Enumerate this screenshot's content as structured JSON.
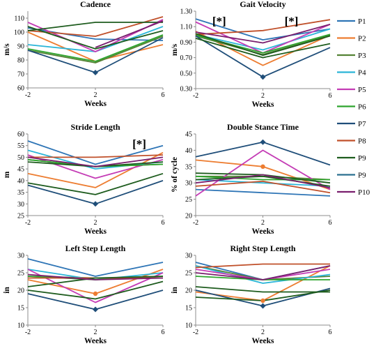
{
  "legend": {
    "entries": [
      {
        "label": "P1",
        "color": "#2e75b6"
      },
      {
        "label": "P2",
        "color": "#ed7d31"
      },
      {
        "label": "P3",
        "color": "#548235"
      },
      {
        "label": "P4",
        "color": "#2bb5d8"
      },
      {
        "label": "P5",
        "color": "#c43cb5"
      },
      {
        "label": "P6",
        "color": "#2ea52e"
      },
      {
        "label": "P7",
        "color": "#1f4e79"
      },
      {
        "label": "P8",
        "color": "#c0502a"
      },
      {
        "label": "P9",
        "color": "#1e5c1e"
      },
      {
        "label": "P9",
        "color": "#2a6f8f"
      },
      {
        "label": "P10",
        "color": "#7a1f6e"
      }
    ]
  },
  "chart_data": [
    {
      "type": "line",
      "title": "Cadence",
      "xlabel": "Weeks",
      "ylabel": "m/s",
      "x": [
        -2,
        2,
        6
      ],
      "ylim": [
        60,
        115
      ],
      "yticks": [
        60,
        70,
        80,
        90,
        100,
        110
      ],
      "ytick_labels": [
        "60",
        "70",
        "80",
        "90",
        "100",
        "110"
      ],
      "marker_series": "P7",
      "significance": [],
      "series": [
        {
          "name": "P1",
          "values": [
            103,
            95,
            94
          ]
        },
        {
          "name": "P2",
          "values": [
            100,
            79,
            91
          ]
        },
        {
          "name": "P3",
          "values": [
            87,
            78,
            97
          ]
        },
        {
          "name": "P4",
          "values": [
            91,
            86,
            104
          ]
        },
        {
          "name": "P5",
          "values": [
            107,
            86,
            109
          ]
        },
        {
          "name": "P6",
          "values": [
            88,
            79,
            98
          ]
        },
        {
          "name": "P7",
          "values": [
            87,
            71,
            96
          ]
        },
        {
          "name": "P8",
          "values": [
            101,
            97,
            111
          ]
        },
        {
          "name": "P9",
          "values": [
            101,
            107,
            107
          ]
        },
        {
          "name": "P9",
          "values": [
            104,
            88,
            101
          ]
        },
        {
          "name": "P10",
          "values": [
            null,
            89,
            108
          ]
        }
      ]
    },
    {
      "type": "line",
      "title": "Gait Velocity",
      "xlabel": "Weeks",
      "ylabel": "m/s",
      "x": [
        -2,
        2,
        6
      ],
      "ylim": [
        0.3,
        1.3
      ],
      "yticks": [
        0.3,
        0.5,
        0.7,
        0.9,
        1.1,
        1.3
      ],
      "ytick_labels": [
        "0.30",
        "0.50",
        "0.70",
        "0.90",
        "1.10",
        "1.30"
      ],
      "marker_series": "P7",
      "significance": [
        {
          "label": "[*]",
          "x": -0.6
        },
        {
          "label": "[*]",
          "x": 3.7
        }
      ],
      "series": [
        {
          "name": "P1",
          "values": [
            1.2,
            0.93,
            1.07
          ]
        },
        {
          "name": "P2",
          "values": [
            1.04,
            0.6,
            0.99
          ]
        },
        {
          "name": "P3",
          "values": [
            0.98,
            0.74,
            0.99
          ]
        },
        {
          "name": "P4",
          "values": [
            1.0,
            0.8,
            1.07
          ]
        },
        {
          "name": "P5",
          "values": [
            1.16,
            0.76,
            1.13
          ]
        },
        {
          "name": "P6",
          "values": [
            0.99,
            0.76,
            1.0
          ]
        },
        {
          "name": "P7",
          "values": [
            0.98,
            0.45,
            0.83
          ]
        },
        {
          "name": "P8",
          "values": [
            1.0,
            1.05,
            1.19
          ]
        },
        {
          "name": "P9",
          "values": [
            1.01,
            0.73,
            0.98
          ]
        },
        {
          "name": "P9",
          "values": [
            0.95,
            0.7,
            0.88
          ]
        },
        {
          "name": "P10",
          "values": [
            1.03,
            0.89,
            1.13
          ]
        }
      ]
    },
    {
      "type": "line",
      "title": "Stride Length",
      "xlabel": "Weeks",
      "ylabel": "m",
      "x": [
        -2,
        2,
        6
      ],
      "ylim": [
        25,
        60
      ],
      "yticks": [
        25,
        30,
        35,
        40,
        45,
        50,
        55,
        60
      ],
      "ytick_labels": [
        "25",
        "30",
        "35",
        "40",
        "45",
        "50",
        "55",
        "60"
      ],
      "marker_series": "P7",
      "significance": [
        {
          "label": "[*]",
          "x": 4.6
        }
      ],
      "series": [
        {
          "name": "P1",
          "values": [
            57,
            47,
            55
          ]
        },
        {
          "name": "P2",
          "values": [
            43,
            37,
            52
          ]
        },
        {
          "name": "P3",
          "values": [
            49,
            46,
            47
          ]
        },
        {
          "name": "P4",
          "values": [
            53,
            45,
            48
          ]
        },
        {
          "name": "P5",
          "values": [
            51,
            41,
            49
          ]
        },
        {
          "name": "P6",
          "values": [
            49,
            46,
            47
          ]
        },
        {
          "name": "P7",
          "values": [
            38,
            30,
            40
          ]
        },
        {
          "name": "P8",
          "values": [
            50,
            50,
            51
          ]
        },
        {
          "name": "P9",
          "values": [
            48,
            46,
            48
          ]
        },
        {
          "name": "P9",
          "values": [
            39,
            34,
            43
          ]
        },
        {
          "name": "P10",
          "values": [
            50,
            46,
            50
          ]
        }
      ]
    },
    {
      "type": "line",
      "title": "Double Stance Time",
      "xlabel": "Weeks",
      "ylabel": "% of cycle",
      "x": [
        -2,
        2,
        6
      ],
      "ylim": [
        20,
        45
      ],
      "yticks": [
        20,
        25,
        30,
        35,
        40,
        45
      ],
      "ytick_labels": [
        "20",
        "25",
        "30",
        "35",
        "40",
        "45"
      ],
      "marker_series": "P7",
      "secondary_markers": [
        {
          "series": "P2",
          "x": 2
        }
      ],
      "significance": [],
      "series": [
        {
          "name": "P1",
          "values": [
            28,
            27,
            26
          ]
        },
        {
          "name": "P2",
          "values": [
            37,
            35,
            28
          ]
        },
        {
          "name": "P3",
          "values": [
            32,
            32,
            31
          ]
        },
        {
          "name": "P4",
          "values": [
            31,
            30,
            29
          ]
        },
        {
          "name": "P5",
          "values": [
            26,
            40,
            28
          ]
        },
        {
          "name": "P6",
          "values": [
            32,
            31,
            31
          ]
        },
        {
          "name": "P7",
          "values": [
            38,
            42.5,
            35.5
          ]
        },
        {
          "name": "P8",
          "values": [
            29,
            30.5,
            27
          ]
        },
        {
          "name": "P9",
          "values": [
            33,
            32.5,
            30
          ]
        },
        {
          "name": "P9",
          "values": [
            31,
            32,
            29
          ]
        },
        {
          "name": "P10",
          "values": [
            30,
            32.5,
            28.5
          ]
        }
      ]
    },
    {
      "type": "line",
      "title": "Left Step Length",
      "xlabel": "Weeks",
      "ylabel": "in",
      "x": [
        -2,
        2,
        6
      ],
      "ylim": [
        10,
        30
      ],
      "yticks": [
        10,
        15,
        20,
        25,
        30
      ],
      "ytick_labels": [
        "10",
        "15",
        "20",
        "25",
        "30"
      ],
      "marker_series": "P7",
      "secondary_markers": [
        {
          "series": "P2",
          "x": 2
        }
      ],
      "significance": [],
      "series": [
        {
          "name": "P1",
          "values": [
            29,
            24,
            28
          ]
        },
        {
          "name": "P2",
          "values": [
            23,
            19,
            26
          ]
        },
        {
          "name": "P3",
          "values": [
            24,
            23.5,
            23.5
          ]
        },
        {
          "name": "P4",
          "values": [
            26,
            23,
            25
          ]
        },
        {
          "name": "P5",
          "values": [
            26,
            16.5,
            25
          ]
        },
        {
          "name": "P6",
          "values": [
            24,
            23,
            24
          ]
        },
        {
          "name": "P7",
          "values": [
            19,
            14.5,
            20
          ]
        },
        {
          "name": "P8",
          "values": [
            23.5,
            23.5,
            23.5
          ]
        },
        {
          "name": "P9",
          "values": [
            21,
            23.5,
            24
          ]
        },
        {
          "name": "P9",
          "values": [
            20,
            17.5,
            22.5
          ]
        },
        {
          "name": "P10",
          "values": [
            24.5,
            23,
            23.5
          ]
        }
      ]
    },
    {
      "type": "line",
      "title": "Right Step Length",
      "xlabel": "Weeks",
      "ylabel": "in",
      "x": [
        -2,
        2,
        6
      ],
      "ylim": [
        10,
        30
      ],
      "yticks": [
        10,
        15,
        20,
        25,
        30
      ],
      "ytick_labels": [
        "10",
        "15",
        "20",
        "25",
        "30"
      ],
      "marker_series": "P7",
      "secondary_markers": [
        {
          "series": "P2",
          "x": 2
        }
      ],
      "significance": [],
      "series": [
        {
          "name": "P1",
          "values": [
            28,
            23,
            27
          ]
        },
        {
          "name": "P2",
          "values": [
            19.5,
            17,
            27
          ]
        },
        {
          "name": "P3",
          "values": [
            27,
            23,
            24
          ]
        },
        {
          "name": "P4",
          "values": [
            27,
            22,
            24.5
          ]
        },
        {
          "name": "P5",
          "values": [
            26,
            23,
            26
          ]
        },
        {
          "name": "P6",
          "values": [
            24,
            23,
            23
          ]
        },
        {
          "name": "P7",
          "values": [
            20,
            15.5,
            20.5
          ]
        },
        {
          "name": "P8",
          "values": [
            26.5,
            27.5,
            27.5
          ]
        },
        {
          "name": "P9",
          "values": [
            21,
            19.5,
            19.5
          ]
        },
        {
          "name": "P9",
          "values": [
            18,
            17,
            20
          ]
        },
        {
          "name": "P10",
          "values": [
            25,
            23,
            27
          ]
        }
      ]
    }
  ]
}
